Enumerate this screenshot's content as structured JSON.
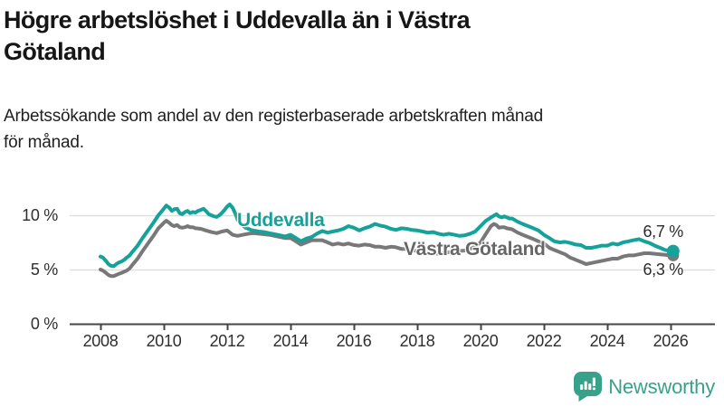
{
  "title": {
    "full": "Högre arbetslöshet i Uddevalla än i Västra Götaland",
    "line1": "Högre arbetslöshet i Uddevalla än i Västra",
    "line2": "Götaland"
  },
  "subtitle": {
    "full": "Arbetssökande som andel av den registerbaserade arbetskraften månad för månad.",
    "line1": "Arbetssökande som andel av den registerbaserade arbetskraften månad",
    "line2": "för månad."
  },
  "chart_data": {
    "type": "line",
    "title": "Högre arbetslöshet i Uddevalla än i Västra Götaland",
    "xlabel": "",
    "ylabel": "",
    "x_ticks": [
      "2008",
      "2010",
      "2012",
      "2014",
      "2016",
      "2018",
      "2020",
      "2022",
      "2024",
      "2026"
    ],
    "y_ticks": [
      "0 %",
      "5 %",
      "10 %"
    ],
    "ylim": [
      0,
      12
    ],
    "x_range": [
      2008,
      2026.2
    ],
    "grid": "horizontal",
    "legend_position": "inline-labels",
    "series": [
      {
        "name": "Västra Götaland",
        "color": "#787878",
        "end_label": "6,3 %",
        "end_value": 6.3,
        "points": [
          [
            2008,
            5.0
          ],
          [
            2008.08,
            4.9
          ],
          [
            2008.17,
            4.7
          ],
          [
            2008.25,
            4.5
          ],
          [
            2008.33,
            4.4
          ],
          [
            2008.42,
            4.4
          ],
          [
            2008.5,
            4.5
          ],
          [
            2008.58,
            4.6
          ],
          [
            2008.67,
            4.7
          ],
          [
            2008.75,
            4.8
          ],
          [
            2008.83,
            4.9
          ],
          [
            2008.92,
            5.1
          ],
          [
            2009,
            5.4
          ],
          [
            2009.17,
            6.0
          ],
          [
            2009.33,
            6.7
          ],
          [
            2009.5,
            7.4
          ],
          [
            2009.67,
            8.1
          ],
          [
            2009.83,
            8.8
          ],
          [
            2010,
            9.3
          ],
          [
            2010.08,
            9.5
          ],
          [
            2010.17,
            9.3
          ],
          [
            2010.25,
            9.1
          ],
          [
            2010.33,
            9.0
          ],
          [
            2010.42,
            9.1
          ],
          [
            2010.5,
            8.9
          ],
          [
            2010.58,
            8.85
          ],
          [
            2010.67,
            8.9
          ],
          [
            2010.75,
            9.0
          ],
          [
            2010.83,
            8.9
          ],
          [
            2010.92,
            8.9
          ],
          [
            2011,
            8.8
          ],
          [
            2011.17,
            8.75
          ],
          [
            2011.33,
            8.6
          ],
          [
            2011.5,
            8.45
          ],
          [
            2011.67,
            8.35
          ],
          [
            2011.83,
            8.5
          ],
          [
            2012,
            8.6
          ],
          [
            2012.17,
            8.2
          ],
          [
            2012.33,
            8.1
          ],
          [
            2012.5,
            8.2
          ],
          [
            2012.67,
            8.3
          ],
          [
            2012.83,
            8.35
          ],
          [
            2013,
            8.3
          ],
          [
            2013.17,
            8.25
          ],
          [
            2013.33,
            8.2
          ],
          [
            2013.5,
            8.1
          ],
          [
            2013.67,
            8.0
          ],
          [
            2013.83,
            7.9
          ],
          [
            2014,
            7.9
          ],
          [
            2014.17,
            7.6
          ],
          [
            2014.33,
            7.3
          ],
          [
            2014.5,
            7.5
          ],
          [
            2014.67,
            7.7
          ],
          [
            2014.83,
            7.7
          ],
          [
            2015,
            7.7
          ],
          [
            2015.17,
            7.5
          ],
          [
            2015.33,
            7.3
          ],
          [
            2015.5,
            7.4
          ],
          [
            2015.67,
            7.3
          ],
          [
            2015.83,
            7.4
          ],
          [
            2016,
            7.25
          ],
          [
            2016.17,
            7.2
          ],
          [
            2016.33,
            7.3
          ],
          [
            2016.5,
            7.25
          ],
          [
            2016.67,
            7.1
          ],
          [
            2016.83,
            7.1
          ],
          [
            2017,
            7.0
          ],
          [
            2017.17,
            7.1
          ],
          [
            2017.33,
            7.05
          ],
          [
            2017.5,
            6.9
          ],
          [
            2017.67,
            6.9
          ],
          [
            2017.83,
            6.8
          ],
          [
            2018,
            6.7
          ],
          [
            2018.17,
            6.6
          ],
          [
            2018.33,
            6.5
          ],
          [
            2018.5,
            6.5
          ],
          [
            2018.67,
            6.45
          ],
          [
            2018.83,
            6.5
          ],
          [
            2019,
            6.6
          ],
          [
            2019.17,
            6.6
          ],
          [
            2019.33,
            6.7
          ],
          [
            2019.5,
            6.75
          ],
          [
            2019.67,
            6.9
          ],
          [
            2019.83,
            7.1
          ],
          [
            2020,
            7.5
          ],
          [
            2020.17,
            8.3
          ],
          [
            2020.33,
            9.0
          ],
          [
            2020.42,
            9.2
          ],
          [
            2020.5,
            9.1
          ],
          [
            2020.58,
            8.85
          ],
          [
            2020.67,
            8.9
          ],
          [
            2020.75,
            8.9
          ],
          [
            2020.83,
            8.8
          ],
          [
            2020.92,
            8.75
          ],
          [
            2021,
            8.7
          ],
          [
            2021.17,
            8.4
          ],
          [
            2021.33,
            8.2
          ],
          [
            2021.5,
            8.0
          ],
          [
            2021.67,
            7.8
          ],
          [
            2021.83,
            7.6
          ],
          [
            2022,
            7.4
          ],
          [
            2022.17,
            7.0
          ],
          [
            2022.33,
            6.8
          ],
          [
            2022.5,
            6.6
          ],
          [
            2022.67,
            6.4
          ],
          [
            2022.83,
            6.1
          ],
          [
            2023,
            5.9
          ],
          [
            2023.17,
            5.7
          ],
          [
            2023.33,
            5.5
          ],
          [
            2023.5,
            5.6
          ],
          [
            2023.67,
            5.7
          ],
          [
            2023.83,
            5.8
          ],
          [
            2024,
            5.9
          ],
          [
            2024.17,
            6.0
          ],
          [
            2024.33,
            6.0
          ],
          [
            2024.5,
            6.2
          ],
          [
            2024.67,
            6.3
          ],
          [
            2024.83,
            6.3
          ],
          [
            2025,
            6.4
          ],
          [
            2025.17,
            6.5
          ],
          [
            2025.33,
            6.5
          ],
          [
            2025.5,
            6.45
          ],
          [
            2025.67,
            6.4
          ],
          [
            2025.83,
            6.35
          ],
          [
            2026,
            6.3
          ],
          [
            2026.08,
            6.3
          ]
        ]
      },
      {
        "name": "Uddevalla",
        "color": "#14a29a",
        "end_label": "6,7 %",
        "end_value": 6.7,
        "points": [
          [
            2008,
            6.2
          ],
          [
            2008.08,
            6.1
          ],
          [
            2008.17,
            5.8
          ],
          [
            2008.25,
            5.5
          ],
          [
            2008.33,
            5.35
          ],
          [
            2008.42,
            5.3
          ],
          [
            2008.5,
            5.5
          ],
          [
            2008.58,
            5.65
          ],
          [
            2008.67,
            5.75
          ],
          [
            2008.75,
            5.9
          ],
          [
            2008.83,
            6.1
          ],
          [
            2008.92,
            6.3
          ],
          [
            2009,
            6.6
          ],
          [
            2009.17,
            7.2
          ],
          [
            2009.33,
            7.9
          ],
          [
            2009.5,
            8.6
          ],
          [
            2009.67,
            9.3
          ],
          [
            2009.83,
            10.0
          ],
          [
            2010,
            10.6
          ],
          [
            2010.08,
            10.9
          ],
          [
            2010.17,
            10.7
          ],
          [
            2010.25,
            10.4
          ],
          [
            2010.33,
            10.55
          ],
          [
            2010.42,
            10.6
          ],
          [
            2010.5,
            10.2
          ],
          [
            2010.58,
            10.1
          ],
          [
            2010.67,
            10.3
          ],
          [
            2010.75,
            10.4
          ],
          [
            2010.83,
            10.2
          ],
          [
            2010.92,
            10.3
          ],
          [
            2011,
            10.25
          ],
          [
            2011.08,
            10.4
          ],
          [
            2011.17,
            10.5
          ],
          [
            2011.25,
            10.6
          ],
          [
            2011.33,
            10.4
          ],
          [
            2011.42,
            10.1
          ],
          [
            2011.5,
            10.0
          ],
          [
            2011.58,
            9.9
          ],
          [
            2011.67,
            9.85
          ],
          [
            2011.75,
            10.0
          ],
          [
            2011.83,
            10.2
          ],
          [
            2011.92,
            10.5
          ],
          [
            2012,
            10.8
          ],
          [
            2012.08,
            11.0
          ],
          [
            2012.17,
            10.7
          ],
          [
            2012.25,
            10.2
          ],
          [
            2012.33,
            9.6
          ],
          [
            2012.42,
            9.3
          ],
          [
            2012.5,
            9.05
          ],
          [
            2012.58,
            8.85
          ],
          [
            2012.67,
            8.75
          ],
          [
            2012.75,
            8.65
          ],
          [
            2012.83,
            8.6
          ],
          [
            2012.92,
            8.55
          ],
          [
            2013,
            8.5
          ],
          [
            2013.17,
            8.45
          ],
          [
            2013.33,
            8.35
          ],
          [
            2013.5,
            8.25
          ],
          [
            2013.67,
            8.15
          ],
          [
            2013.83,
            8.05
          ],
          [
            2014,
            8.2
          ],
          [
            2014.17,
            7.9
          ],
          [
            2014.33,
            7.6
          ],
          [
            2014.5,
            7.85
          ],
          [
            2014.67,
            8.0
          ],
          [
            2014.83,
            8.3
          ],
          [
            2015,
            8.55
          ],
          [
            2015.17,
            8.4
          ],
          [
            2015.33,
            8.5
          ],
          [
            2015.5,
            8.6
          ],
          [
            2015.67,
            8.75
          ],
          [
            2015.83,
            9.0
          ],
          [
            2016,
            8.85
          ],
          [
            2016.17,
            8.6
          ],
          [
            2016.33,
            8.8
          ],
          [
            2016.5,
            8.95
          ],
          [
            2016.67,
            9.2
          ],
          [
            2016.83,
            9.05
          ],
          [
            2017,
            8.95
          ],
          [
            2017.17,
            8.75
          ],
          [
            2017.33,
            8.65
          ],
          [
            2017.5,
            8.8
          ],
          [
            2017.67,
            8.75
          ],
          [
            2017.83,
            8.65
          ],
          [
            2018,
            8.6
          ],
          [
            2018.17,
            8.5
          ],
          [
            2018.33,
            8.4
          ],
          [
            2018.5,
            8.45
          ],
          [
            2018.67,
            8.3
          ],
          [
            2018.83,
            8.2
          ],
          [
            2019,
            8.3
          ],
          [
            2019.17,
            8.2
          ],
          [
            2019.33,
            8.1
          ],
          [
            2019.5,
            8.15
          ],
          [
            2019.67,
            8.3
          ],
          [
            2019.83,
            8.5
          ],
          [
            2020,
            9.0
          ],
          [
            2020.17,
            9.5
          ],
          [
            2020.33,
            9.8
          ],
          [
            2020.5,
            10.1
          ],
          [
            2020.58,
            9.9
          ],
          [
            2020.67,
            9.8
          ],
          [
            2020.75,
            9.9
          ],
          [
            2020.83,
            9.8
          ],
          [
            2020.92,
            9.7
          ],
          [
            2021,
            9.7
          ],
          [
            2021.17,
            9.4
          ],
          [
            2021.33,
            9.2
          ],
          [
            2021.5,
            9.0
          ],
          [
            2021.67,
            8.8
          ],
          [
            2021.83,
            8.6
          ],
          [
            2022,
            8.2
          ],
          [
            2022.17,
            7.9
          ],
          [
            2022.33,
            7.6
          ],
          [
            2022.5,
            7.5
          ],
          [
            2022.67,
            7.55
          ],
          [
            2022.83,
            7.45
          ],
          [
            2023,
            7.3
          ],
          [
            2023.17,
            7.25
          ],
          [
            2023.33,
            7.0
          ],
          [
            2023.5,
            7.0
          ],
          [
            2023.67,
            7.1
          ],
          [
            2023.83,
            7.2
          ],
          [
            2024,
            7.2
          ],
          [
            2024.17,
            7.4
          ],
          [
            2024.33,
            7.3
          ],
          [
            2024.5,
            7.5
          ],
          [
            2024.67,
            7.6
          ],
          [
            2024.83,
            7.7
          ],
          [
            2025,
            7.8
          ],
          [
            2025.17,
            7.6
          ],
          [
            2025.33,
            7.45
          ],
          [
            2025.5,
            7.2
          ],
          [
            2025.67,
            7.0
          ],
          [
            2025.83,
            6.8
          ],
          [
            2026,
            6.7
          ],
          [
            2026.08,
            6.7
          ]
        ]
      }
    ],
    "colors": {
      "uddevalla_line": "#14a29a",
      "vastra_gotaland_line": "#787878",
      "grid_line": "#dcdcdc",
      "axis_line": "#454545"
    }
  },
  "branding": {
    "name": "Newsworthy",
    "icon": "bar-chart-speech-bubble-icon",
    "color": "#38a189"
  }
}
